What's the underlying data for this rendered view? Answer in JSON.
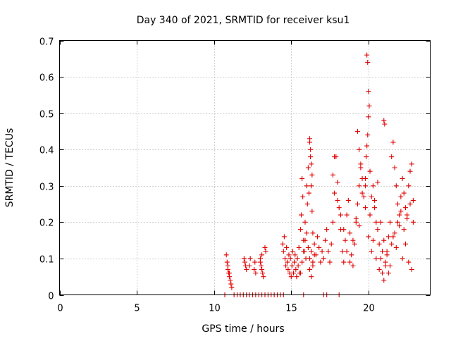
{
  "chart_data": {
    "type": "scatter",
    "title": "Day 340 of 2021, SRMTID for receiver ksu1",
    "xlabel": "GPS time / hours",
    "ylabel": "SRMTID / TECUs",
    "xlim": [
      0,
      24
    ],
    "ylim": [
      0,
      0.7
    ],
    "xticks": [
      0,
      5,
      10,
      15,
      20
    ],
    "xtick_labels": [
      "0",
      "5",
      "10",
      "15",
      "20"
    ],
    "yticks": [
      0,
      0.1,
      0.2,
      0.3,
      0.4,
      0.5,
      0.6,
      0.7
    ],
    "ytick_labels": [
      "0",
      "0.1",
      "0.2",
      "0.3",
      "0.4",
      "0.5",
      "0.6",
      "0.7"
    ],
    "grid": true,
    "marker": "+",
    "color": "#e00000",
    "series": [
      {
        "name": "SRMTID",
        "x": [
          10.8,
          10.85,
          10.9,
          10.95,
          11.0,
          11.05,
          11.1,
          11.15,
          10.9,
          11.0,
          10.7,
          11.3,
          11.5,
          11.7,
          11.9,
          12.1,
          12.3,
          12.5,
          12.7,
          12.9,
          13.1,
          13.3,
          13.5,
          13.7,
          13.9,
          14.1,
          14.3,
          14.5,
          15.8,
          17.1,
          17.3,
          18.1,
          11.95,
          12.0,
          12.05,
          12.1,
          12.3,
          12.35,
          12.6,
          12.65,
          12.7,
          13.0,
          13.05,
          13.1,
          13.15,
          13.2,
          13.0,
          13.1,
          13.3,
          13.35,
          14.45,
          14.5,
          14.55,
          14.6,
          14.65,
          14.7,
          14.75,
          14.8,
          14.85,
          14.9,
          14.95,
          15.0,
          15.05,
          15.1,
          15.15,
          15.2,
          15.25,
          15.3,
          15.35,
          15.4,
          15.45,
          15.5,
          15.55,
          15.6,
          15.65,
          15.7,
          15.75,
          15.8,
          15.85,
          15.9,
          15.95,
          16.0,
          16.05,
          16.1,
          16.15,
          16.2,
          16.25,
          16.3,
          16.35,
          16.4,
          15.6,
          15.7,
          15.8,
          15.9,
          16.0,
          16.1,
          16.2,
          16.3,
          16.4,
          16.5,
          16.6,
          16.7,
          16.8,
          16.9,
          17.0,
          17.1,
          17.2,
          17.3,
          17.4,
          17.5,
          16.2,
          16.25,
          16.3,
          16.35,
          16.2,
          16.3,
          16.4,
          16.5,
          17.6,
          17.7,
          17.8,
          17.9,
          18.0,
          18.1,
          18.2,
          18.3,
          18.4,
          18.5,
          18.6,
          18.7,
          18.8,
          18.9,
          19.0,
          19.1,
          19.2,
          19.3,
          19.4,
          19.5,
          17.7,
          17.8,
          18.0,
          18.2,
          18.4,
          18.6,
          18.8,
          19.0,
          19.2,
          19.4,
          19.6,
          19.8,
          20.0,
          20.2,
          20.4,
          20.6,
          20.8,
          21.0,
          21.2,
          21.4,
          19.9,
          19.95,
          20.0,
          20.0,
          19.95,
          19.9,
          20.05,
          19.85,
          20.1,
          19.8,
          19.3,
          19.4,
          19.5,
          19.6,
          19.7,
          19.8,
          20.1,
          20.2,
          20.3,
          20.4,
          20.5,
          20.6,
          20.7,
          20.8,
          20.9,
          21.0,
          21.1,
          21.2,
          21.3,
          21.4,
          20.3,
          20.5,
          20.7,
          20.9,
          21.1,
          21.3,
          21.5,
          21.7,
          21.9,
          22.1,
          22.3,
          22.5,
          22.7,
          22.9,
          21.0,
          21.05,
          21.5,
          21.6,
          21.7,
          21.8,
          21.9,
          22.0,
          22.1,
          22.2,
          22.3,
          22.4,
          22.5,
          22.6,
          22.7,
          22.8,
          22.9,
          21.6,
          21.8,
          22.0,
          22.2,
          22.4,
          22.6,
          22.8
        ],
        "y": [
          0.11,
          0.09,
          0.07,
          0.06,
          0.05,
          0.04,
          0.03,
          0.02,
          0.08,
          0.06,
          0.0,
          0.0,
          0.0,
          0.0,
          0.0,
          0.0,
          0.0,
          0.0,
          0.0,
          0.0,
          0.0,
          0.0,
          0.0,
          0.0,
          0.0,
          0.0,
          0.0,
          0.0,
          0.0,
          0.0,
          0.0,
          0.0,
          0.1,
          0.09,
          0.08,
          0.07,
          0.08,
          0.1,
          0.07,
          0.09,
          0.06,
          0.1,
          0.08,
          0.07,
          0.06,
          0.05,
          0.09,
          0.11,
          0.13,
          0.12,
          0.14,
          0.12,
          0.16,
          0.1,
          0.08,
          0.13,
          0.09,
          0.07,
          0.11,
          0.06,
          0.1,
          0.05,
          0.08,
          0.12,
          0.06,
          0.09,
          0.11,
          0.07,
          0.05,
          0.1,
          0.08,
          0.13,
          0.06,
          0.18,
          0.22,
          0.32,
          0.27,
          0.15,
          0.12,
          0.2,
          0.1,
          0.3,
          0.25,
          0.35,
          0.28,
          0.42,
          0.38,
          0.3,
          0.23,
          0.17,
          0.06,
          0.09,
          0.12,
          0.15,
          0.17,
          0.13,
          0.1,
          0.12,
          0.08,
          0.14,
          0.11,
          0.16,
          0.13,
          0.09,
          0.12,
          0.1,
          0.15,
          0.18,
          0.12,
          0.09,
          0.43,
          0.4,
          0.36,
          0.33,
          0.07,
          0.05,
          0.09,
          0.11,
          0.14,
          0.2,
          0.28,
          0.38,
          0.31,
          0.24,
          0.18,
          0.12,
          0.09,
          0.15,
          0.22,
          0.26,
          0.17,
          0.11,
          0.08,
          0.14,
          0.2,
          0.25,
          0.3,
          0.35,
          0.33,
          0.38,
          0.26,
          0.22,
          0.18,
          0.12,
          0.09,
          0.15,
          0.21,
          0.19,
          0.28,
          0.32,
          0.16,
          0.12,
          0.24,
          0.31,
          0.2,
          0.15,
          0.11,
          0.08,
          0.66,
          0.64,
          0.56,
          0.49,
          0.44,
          0.41,
          0.52,
          0.38,
          0.34,
          0.3,
          0.45,
          0.4,
          0.36,
          0.32,
          0.27,
          0.24,
          0.22,
          0.27,
          0.3,
          0.26,
          0.2,
          0.18,
          0.14,
          0.1,
          0.06,
          0.04,
          0.08,
          0.12,
          0.16,
          0.2,
          0.15,
          0.1,
          0.07,
          0.12,
          0.09,
          0.06,
          0.14,
          0.17,
          0.2,
          0.23,
          0.18,
          0.22,
          0.25,
          0.2,
          0.48,
          0.47,
          0.38,
          0.42,
          0.35,
          0.3,
          0.25,
          0.22,
          0.27,
          0.32,
          0.28,
          0.24,
          0.21,
          0.3,
          0.34,
          0.36,
          0.26,
          0.16,
          0.13,
          0.19,
          0.1,
          0.14,
          0.09,
          0.07
        ]
      }
    ]
  }
}
